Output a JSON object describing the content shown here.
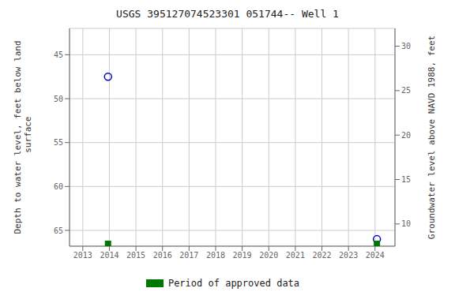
{
  "chart_data": {
    "type": "scatter",
    "title": "USGS 395127074523301 051744-- Well 1",
    "y_label": "Depth to water level, feet below land\n surface",
    "y2_label": "Groundwater level above NAVD 1988, feet",
    "xlim": [
      2012.5,
      2024.75
    ],
    "xticks": [
      2013,
      2014,
      2015,
      2016,
      2017,
      2018,
      2019,
      2020,
      2021,
      2022,
      2023,
      2024
    ],
    "ylim": [
      66.8,
      42.0
    ],
    "yticks": [
      45,
      50,
      55,
      60,
      65
    ],
    "y2lim": [
      7.5,
      32.0
    ],
    "y2ticks": [
      10,
      15,
      20,
      25,
      30
    ],
    "grid": true,
    "series": [
      {
        "type": "scatter",
        "marker": "circle",
        "color": "#0000bb",
        "x": [
          2013.95,
          2024.07
        ],
        "values": [
          47.5,
          66.0
        ]
      },
      {
        "type": "rug",
        "marker": "square",
        "name": "Period of approved data",
        "color": "#007700",
        "x": [
          2013.95,
          2024.07
        ]
      }
    ]
  }
}
